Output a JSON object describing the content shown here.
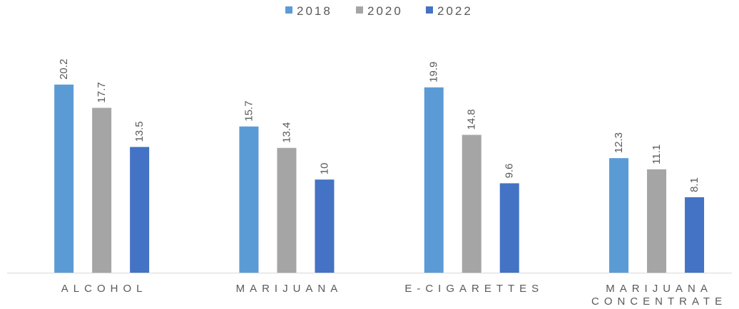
{
  "chart_data": {
    "type": "bar",
    "categories": [
      "ALCOHOL",
      "MARIJUANA",
      "E-CIGARETTES",
      "MARIJUANA CONCENTRATE"
    ],
    "series": [
      {
        "name": "2018",
        "color": "#5B9BD5",
        "values": [
          20.2,
          15.7,
          19.9,
          12.3
        ]
      },
      {
        "name": "2020",
        "color": "#A5A5A5",
        "values": [
          17.7,
          13.4,
          14.8,
          11.1
        ]
      },
      {
        "name": "2022",
        "color": "#4472C4",
        "values": [
          13.5,
          10,
          9.6,
          8.1
        ]
      }
    ],
    "ylim": [
      0,
      25
    ],
    "grid": false,
    "data_labels": true,
    "legend": "top-center"
  },
  "colors": {
    "text": "#595959",
    "axis": "#D9D9D9"
  }
}
